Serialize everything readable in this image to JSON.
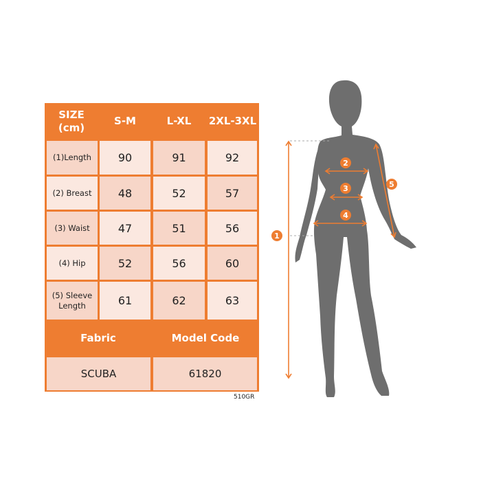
{
  "table": {
    "header": [
      "SIZE\n(cm)",
      "S-M",
      "L-XL",
      "2XL-3XL"
    ],
    "header_line1": "SIZE",
    "header_line2": "(cm)",
    "rows": [
      {
        "label": "(1)Length",
        "values": [
          "90",
          "91",
          "92"
        ]
      },
      {
        "label": "(2) Breast",
        "values": [
          "48",
          "52",
          "57"
        ]
      },
      {
        "label": "(3) Waist",
        "values": [
          "47",
          "51",
          "56"
        ]
      },
      {
        "label": "(4) Hip",
        "values": [
          "52",
          "56",
          "60"
        ]
      },
      {
        "label": "(5) Sleeve Length",
        "values": [
          "61",
          "62",
          "63"
        ]
      }
    ],
    "fabric_label": "Fabric",
    "model_code_label": "Model Code",
    "fabric_value": "SCUBA",
    "model_code_value": "61820"
  },
  "product_code": "510GR",
  "figure": {
    "markers": [
      "1",
      "2",
      "3",
      "4",
      "5"
    ]
  },
  "colors": {
    "accent": "#ee7d31",
    "cell_dark": "#f7d6c8",
    "cell_light": "#fbe8e0",
    "silhouette": "#6e6e6e"
  }
}
